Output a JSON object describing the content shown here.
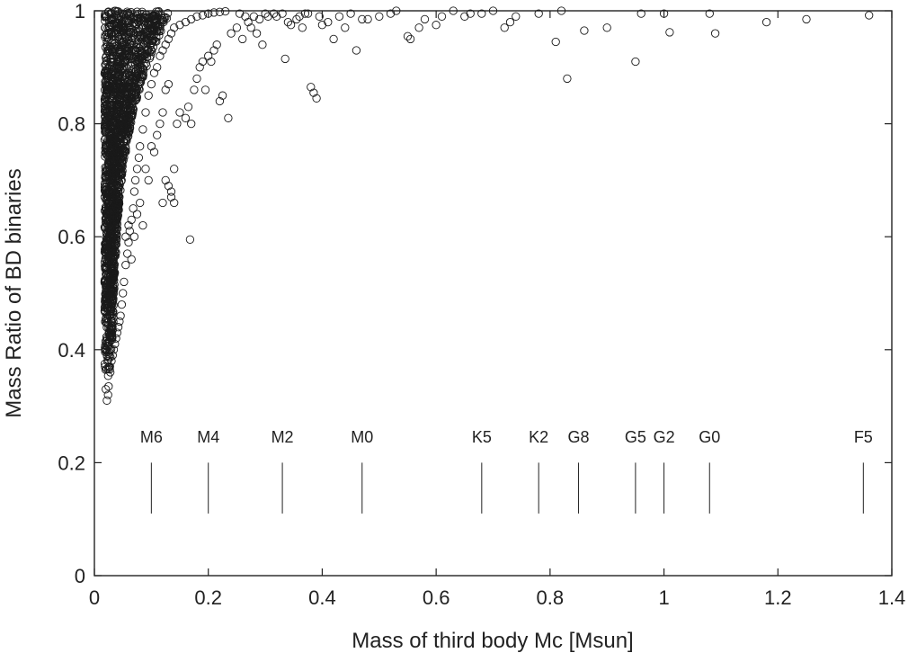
{
  "chart_data": {
    "type": "scatter",
    "title": "",
    "xlabel": "Mass of third body Mc [Msun]",
    "ylabel": "Mass Ratio of BD binaries",
    "xlim": [
      0,
      1.4
    ],
    "ylim": [
      0,
      1
    ],
    "xticks": [
      "0",
      "0.2",
      "0.4",
      "0.6",
      "0.8",
      "1",
      "1.2",
      "1.4"
    ],
    "yticks": [
      "0",
      "0.2",
      "0.4",
      "0.6",
      "0.8",
      "1"
    ],
    "grid": false,
    "legend": "none",
    "marker": "open circle",
    "spectral_types": [
      {
        "label": "M6",
        "mass": 0.1
      },
      {
        "label": "M4",
        "mass": 0.2
      },
      {
        "label": "M2",
        "mass": 0.33
      },
      {
        "label": "M0",
        "mass": 0.47
      },
      {
        "label": "K5",
        "mass": 0.68
      },
      {
        "label": "K2",
        "mass": 0.78
      },
      {
        "label": "G8",
        "mass": 0.85
      },
      {
        "label": "G5",
        "mass": 0.95
      },
      {
        "label": "G2",
        "mass": 1.0
      },
      {
        "label": "G0",
        "mass": 1.08
      },
      {
        "label": "F5",
        "mass": 1.35
      }
    ],
    "spectral_line_range": [
      0.11,
      0.2
    ],
    "spectral_label_y": 0.245,
    "points": [
      [
        0.02,
        0.33
      ],
      [
        0.022,
        0.31
      ],
      [
        0.024,
        0.32
      ],
      [
        0.025,
        0.335
      ],
      [
        0.026,
        0.37
      ],
      [
        0.028,
        0.36
      ],
      [
        0.03,
        0.38
      ],
      [
        0.032,
        0.39
      ],
      [
        0.034,
        0.4
      ],
      [
        0.036,
        0.41
      ],
      [
        0.038,
        0.42
      ],
      [
        0.04,
        0.43
      ],
      [
        0.042,
        0.44
      ],
      [
        0.044,
        0.45
      ],
      [
        0.046,
        0.46
      ],
      [
        0.048,
        0.48
      ],
      [
        0.05,
        0.5
      ],
      [
        0.052,
        0.52
      ],
      [
        0.055,
        0.55
      ],
      [
        0.058,
        0.57
      ],
      [
        0.06,
        0.59
      ],
      [
        0.062,
        0.61
      ],
      [
        0.065,
        0.63
      ],
      [
        0.068,
        0.65
      ],
      [
        0.07,
        0.68
      ],
      [
        0.072,
        0.7
      ],
      [
        0.075,
        0.72
      ],
      [
        0.078,
        0.74
      ],
      [
        0.08,
        0.76
      ],
      [
        0.085,
        0.79
      ],
      [
        0.09,
        0.82
      ],
      [
        0.095,
        0.85
      ],
      [
        0.1,
        0.87
      ],
      [
        0.105,
        0.89
      ],
      [
        0.11,
        0.9
      ],
      [
        0.115,
        0.92
      ],
      [
        0.12,
        0.93
      ],
      [
        0.125,
        0.94
      ],
      [
        0.13,
        0.95
      ],
      [
        0.135,
        0.96
      ],
      [
        0.14,
        0.97
      ],
      [
        0.15,
        0.975
      ],
      [
        0.16,
        0.98
      ],
      [
        0.17,
        0.985
      ],
      [
        0.18,
        0.99
      ],
      [
        0.19,
        0.992
      ],
      [
        0.2,
        0.995
      ],
      [
        0.21,
        0.997
      ],
      [
        0.22,
        0.998
      ],
      [
        0.23,
        0.999
      ],
      [
        0.055,
        0.6
      ],
      [
        0.06,
        0.62
      ],
      [
        0.065,
        0.56
      ],
      [
        0.07,
        0.6
      ],
      [
        0.075,
        0.64
      ],
      [
        0.08,
        0.66
      ],
      [
        0.085,
        0.62
      ],
      [
        0.09,
        0.72
      ],
      [
        0.095,
        0.7
      ],
      [
        0.1,
        0.76
      ],
      [
        0.105,
        0.75
      ],
      [
        0.11,
        0.78
      ],
      [
        0.115,
        0.8
      ],
      [
        0.12,
        0.82
      ],
      [
        0.125,
        0.86
      ],
      [
        0.13,
        0.87
      ],
      [
        0.12,
        0.66
      ],
      [
        0.125,
        0.7
      ],
      [
        0.13,
        0.69
      ],
      [
        0.135,
        0.67
      ],
      [
        0.135,
        0.68
      ],
      [
        0.14,
        0.72
      ],
      [
        0.14,
        0.66
      ],
      [
        0.145,
        0.8
      ],
      [
        0.15,
        0.82
      ],
      [
        0.16,
        0.81
      ],
      [
        0.165,
        0.83
      ],
      [
        0.17,
        0.8
      ],
      [
        0.168,
        0.595
      ],
      [
        0.175,
        0.86
      ],
      [
        0.18,
        0.88
      ],
      [
        0.185,
        0.9
      ],
      [
        0.19,
        0.91
      ],
      [
        0.195,
        0.86
      ],
      [
        0.2,
        0.92
      ],
      [
        0.205,
        0.91
      ],
      [
        0.21,
        0.93
      ],
      [
        0.215,
        0.94
      ],
      [
        0.22,
        0.84
      ],
      [
        0.225,
        0.85
      ],
      [
        0.235,
        0.81
      ],
      [
        0.24,
        0.96
      ],
      [
        0.25,
        0.97
      ],
      [
        0.26,
        0.95
      ],
      [
        0.27,
        0.98
      ],
      [
        0.28,
        0.99
      ],
      [
        0.29,
        0.985
      ],
      [
        0.3,
        0.995
      ],
      [
        0.32,
        0.99
      ],
      [
        0.33,
        0.995
      ],
      [
        0.335,
        0.915
      ],
      [
        0.34,
        0.98
      ],
      [
        0.36,
        0.99
      ],
      [
        0.37,
        0.995
      ],
      [
        0.38,
        0.865
      ],
      [
        0.385,
        0.855
      ],
      [
        0.39,
        0.845
      ],
      [
        0.4,
        0.975
      ],
      [
        0.41,
        0.98
      ],
      [
        0.42,
        0.95
      ],
      [
        0.44,
        0.97
      ],
      [
        0.46,
        0.93
      ],
      [
        0.48,
        0.985
      ],
      [
        0.5,
        0.99
      ],
      [
        0.53,
        1.0
      ],
      [
        0.55,
        0.955
      ],
      [
        0.555,
        0.95
      ],
      [
        0.57,
        0.97
      ],
      [
        0.58,
        0.985
      ],
      [
        0.6,
        0.975
      ],
      [
        0.63,
        1.0
      ],
      [
        0.65,
        0.99
      ],
      [
        0.68,
        0.995
      ],
      [
        0.7,
        1.0
      ],
      [
        0.72,
        0.97
      ],
      [
        0.73,
        0.98
      ],
      [
        0.78,
        0.995
      ],
      [
        0.81,
        0.945
      ],
      [
        0.82,
        1.0
      ],
      [
        0.83,
        0.88
      ],
      [
        0.86,
        0.965
      ],
      [
        0.9,
        0.97
      ],
      [
        0.95,
        0.91
      ],
      [
        0.96,
        0.995
      ],
      [
        1.0,
        0.995
      ],
      [
        1.01,
        0.962
      ],
      [
        1.08,
        0.995
      ],
      [
        1.09,
        0.96
      ],
      [
        1.18,
        0.98
      ],
      [
        1.25,
        0.985
      ],
      [
        1.36,
        0.992
      ],
      [
        0.255,
        0.995
      ],
      [
        0.265,
        0.99
      ],
      [
        0.275,
        0.97
      ],
      [
        0.285,
        0.96
      ],
      [
        0.295,
        0.94
      ],
      [
        0.305,
        0.99
      ],
      [
        0.315,
        0.995
      ],
      [
        0.345,
        0.975
      ],
      [
        0.355,
        0.985
      ],
      [
        0.365,
        0.97
      ],
      [
        0.375,
        0.995
      ],
      [
        0.395,
        0.99
      ],
      [
        0.43,
        0.99
      ],
      [
        0.45,
        0.995
      ],
      [
        0.47,
        0.985
      ],
      [
        0.52,
        0.995
      ],
      [
        0.61,
        0.99
      ],
      [
        0.66,
        0.995
      ],
      [
        0.74,
        0.99
      ]
    ]
  }
}
